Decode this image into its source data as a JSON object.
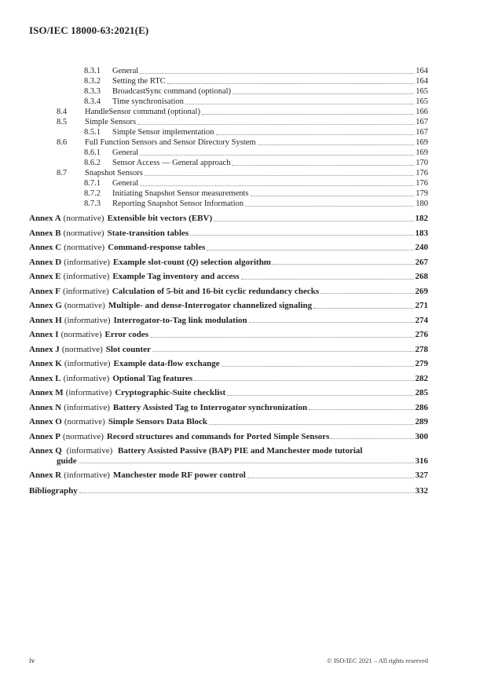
{
  "header": {
    "title": "ISO/IEC 18000-63:2021(E)"
  },
  "toc": {
    "sections": [
      {
        "number": "8.3.1",
        "level": 3,
        "title": "General",
        "page": "164"
      },
      {
        "number": "8.3.2",
        "level": 3,
        "title": "Setting the RTC",
        "page": "164"
      },
      {
        "number": "8.3.3",
        "level": 3,
        "title": "BroadcastSync command (optional)",
        "page": "165"
      },
      {
        "number": "8.3.4",
        "level": 3,
        "title": "Time synchronisation",
        "page": "165"
      },
      {
        "number": "8.4",
        "level": 2,
        "title": "HandleSensor command (optional)",
        "page": "166"
      },
      {
        "number": "8.5",
        "level": 2,
        "title": "Simple Sensors",
        "page": "167"
      },
      {
        "number": "8.5.1",
        "level": 3,
        "title": "Simple Sensor implementation",
        "page": "167"
      },
      {
        "number": "8.6",
        "level": 2,
        "title": "Full Function Sensors and Sensor Directory System",
        "page": "169"
      },
      {
        "number": "8.6.1",
        "level": 3,
        "title": "General",
        "page": "169"
      },
      {
        "number": "8.6.2",
        "level": 3,
        "title": "Sensor Access — General approach",
        "page": "170"
      },
      {
        "number": "8.7",
        "level": 2,
        "title": "Snapshot Sensors",
        "page": "176"
      },
      {
        "number": "8.7.1",
        "level": 3,
        "title": "General",
        "page": "176"
      },
      {
        "number": "8.7.2",
        "level": 3,
        "title": "Initiating Snapshot Sensor measurements",
        "page": "179"
      },
      {
        "number": "8.7.3",
        "level": 3,
        "title": "Reporting Snapshot Sensor Information",
        "page": "180"
      }
    ],
    "annexes": [
      {
        "label": "Annex A",
        "kind": "(normative)",
        "title": "Extensible bit vectors (EBV)",
        "page": "182"
      },
      {
        "label": "Annex B",
        "kind": "(normative)",
        "title": "State-transition tables",
        "page": "183"
      },
      {
        "label": "Annex C",
        "kind": "(normative)",
        "title": "Command-response tables",
        "page": "240"
      },
      {
        "label": "Annex D",
        "kind": "(informative)",
        "title": "Example slot-count (Q) selection algorithm",
        "title_runs": [
          {
            "text": "Example slot-count ("
          },
          {
            "text": "Q",
            "italic": true
          },
          {
            "text": ") selection algorithm"
          }
        ],
        "page": "267"
      },
      {
        "label": "Annex E",
        "kind": "(informative)",
        "title": "Example Tag inventory and access",
        "page": "268"
      },
      {
        "label": "Annex F",
        "kind": "(informative)",
        "title": "Calculation of 5-bit and 16-bit cyclic redundancy checks",
        "page": "269"
      },
      {
        "label": "Annex G",
        "kind": "(normative)",
        "title": "Multiple- and dense-Interrogator channelized signaling",
        "page": "271"
      },
      {
        "label": "Annex H",
        "kind": "(informative)",
        "title": "Interrogator-to-Tag link modulation",
        "page": "274"
      },
      {
        "label": "Annex I",
        "kind": "(normative)",
        "title": "Error codes",
        "page": "276"
      },
      {
        "label": "Annex J",
        "kind": "(normative)",
        "title": "Slot counter",
        "page": "278"
      },
      {
        "label": "Annex K",
        "kind": "(informative)",
        "title": "Example data-flow exchange",
        "page": "279"
      },
      {
        "label": "Annex L",
        "kind": "(informative)",
        "title": "Optional Tag features",
        "page": "282"
      },
      {
        "label": "Annex M",
        "kind": "(informative)",
        "title": "Cryptographic-Suite checklist",
        "page": "285"
      },
      {
        "label": "Annex N",
        "kind": "(informative)",
        "title": "Battery Assisted Tag to Interrogator synchronization",
        "page": "286"
      },
      {
        "label": "Annex O",
        "kind": "(normative)",
        "title": "Simple Sensors Data Block",
        "page": "289"
      },
      {
        "label": "Annex P",
        "kind": "(normative)",
        "title": "Record structures and commands for Ported Simple Sensors",
        "page": "300"
      },
      {
        "label": "Annex Q",
        "kind": "(informative)",
        "title": "Battery Assisted Passive (BAP) PIE and Manchester mode tutorial",
        "title2": "guide",
        "page": "316"
      },
      {
        "label": "Annex R",
        "kind": "(informative)",
        "title": "Manchester mode RF power control",
        "page": "327"
      }
    ],
    "bibliography": {
      "title": "Bibliography",
      "page": "332"
    }
  },
  "footer": {
    "page_label": "iv",
    "copyright": "© ISO/IEC 2021 – All rights reserved"
  }
}
